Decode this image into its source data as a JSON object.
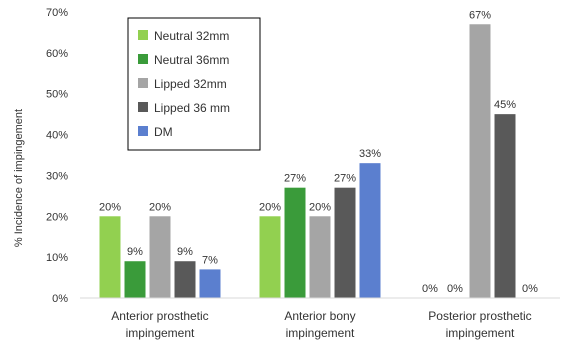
{
  "chart_data": {
    "type": "bar",
    "title": "",
    "xlabel": "",
    "ylabel": "% Incidence of impingement",
    "ylim": [
      0,
      70
    ],
    "yticks": [
      0,
      10,
      20,
      30,
      40,
      50,
      60,
      70
    ],
    "ytick_labels": [
      "0%",
      "10%",
      "20%",
      "30%",
      "40%",
      "50%",
      "60%",
      "70%"
    ],
    "grid": false,
    "legend_position": "top-left",
    "categories": [
      [
        "Anterior prosthetic",
        "impingement"
      ],
      [
        "Anterior bony",
        "impingement"
      ],
      [
        "Posterior prosthetic",
        "impingement"
      ]
    ],
    "series": [
      {
        "name": "Neutral 32mm",
        "color": "#92d050",
        "values": [
          20,
          20,
          0
        ],
        "labels": [
          "20%",
          "20%",
          "0%"
        ]
      },
      {
        "name": "Neutral 36mm",
        "color": "#3a9b3a",
        "values": [
          9,
          27,
          0
        ],
        "labels": [
          "9%",
          "27%",
          "0%"
        ]
      },
      {
        "name": "Lipped 32mm",
        "color": "#a5a5a5",
        "values": [
          20,
          20,
          67
        ],
        "labels": [
          "20%",
          "20%",
          "67%"
        ]
      },
      {
        "name": "Lipped 36 mm",
        "color": "#595959",
        "values": [
          9,
          27,
          45
        ],
        "labels": [
          "9%",
          "27%",
          "45%"
        ]
      },
      {
        "name": "DM",
        "color": "#5b7fcf",
        "values": [
          7,
          33,
          0
        ],
        "labels": [
          "7%",
          "33%",
          "0%"
        ]
      }
    ]
  }
}
